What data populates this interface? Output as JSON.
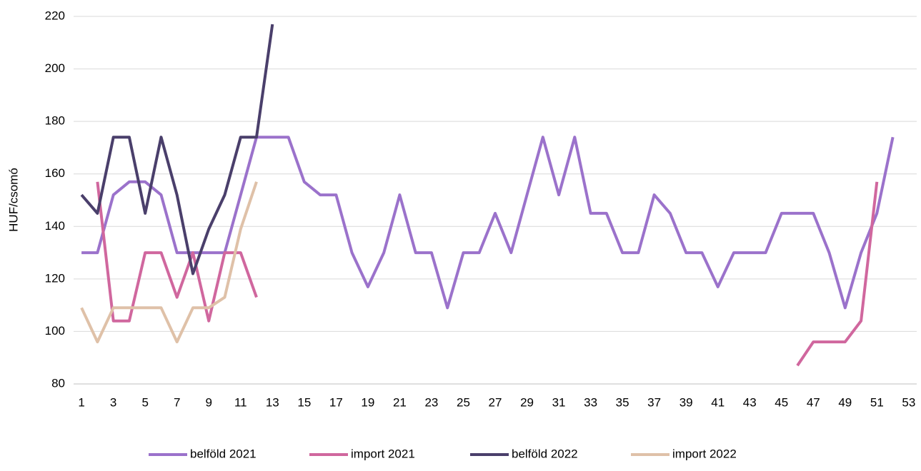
{
  "chart_data": {
    "type": "line",
    "y_label": "HUF/csomó",
    "categories": [
      1,
      null,
      3,
      null,
      5,
      null,
      7,
      null,
      9,
      null,
      11,
      null,
      13,
      null,
      15,
      null,
      17,
      null,
      19,
      null,
      21,
      null,
      23,
      null,
      25,
      null,
      27,
      null,
      29,
      null,
      31,
      null,
      33,
      null,
      35,
      null,
      37,
      null,
      39,
      null,
      41,
      null,
      43,
      null,
      45,
      null,
      47,
      null,
      49,
      null,
      51,
      null,
      53
    ],
    "ylim": [
      80,
      220
    ],
    "yticks": [
      80,
      100,
      120,
      140,
      160,
      180,
      200,
      220
    ],
    "grid": true,
    "legend": "bottom",
    "series": [
      {
        "name": "belföld 2021",
        "color": "#9b72cb",
        "values": [
          130,
          130,
          152,
          157,
          157,
          152,
          130,
          130,
          130,
          130,
          152,
          174,
          174,
          174,
          157,
          152,
          152,
          130,
          117,
          130,
          152,
          130,
          130,
          109,
          130,
          130,
          145,
          130,
          152,
          174,
          152,
          174,
          145,
          145,
          130,
          130,
          152,
          145,
          130,
          130,
          117,
          130,
          130,
          130,
          145,
          145,
          145,
          130,
          109,
          130,
          145,
          174,
          null
        ]
      },
      {
        "name": "import 2021",
        "color": "#d0679e",
        "values": [
          null,
          157,
          104,
          104,
          130,
          130,
          113,
          130,
          104,
          130,
          130,
          113,
          null,
          null,
          null,
          null,
          null,
          null,
          null,
          null,
          null,
          null,
          null,
          null,
          null,
          null,
          null,
          null,
          null,
          null,
          null,
          null,
          null,
          null,
          null,
          null,
          null,
          null,
          null,
          null,
          null,
          null,
          null,
          null,
          null,
          87,
          96,
          96,
          96,
          104,
          157,
          null,
          null
        ]
      },
      {
        "name": "belföld 2022",
        "color": "#4a3f6b",
        "values": [
          152,
          145,
          174,
          174,
          145,
          174,
          152,
          122,
          139,
          152,
          174,
          174,
          217,
          null,
          null,
          null,
          null,
          null,
          null,
          null,
          null,
          null,
          null,
          null,
          null,
          null,
          null,
          null,
          null,
          null,
          null,
          null,
          null,
          null,
          null,
          null,
          null,
          null,
          null,
          null,
          null,
          null,
          null,
          null,
          null,
          null,
          null,
          null,
          null,
          null,
          null,
          null,
          null
        ]
      },
      {
        "name": "import 2022",
        "color": "#dfc1a8",
        "values": [
          109,
          96,
          109,
          109,
          109,
          109,
          96,
          109,
          109,
          113,
          139,
          157,
          null,
          null,
          null,
          null,
          null,
          null,
          null,
          null,
          null,
          null,
          null,
          null,
          null,
          null,
          null,
          null,
          null,
          null,
          null,
          null,
          null,
          null,
          null,
          null,
          null,
          null,
          null,
          null,
          null,
          null,
          null,
          null,
          null,
          null,
          null,
          null,
          null,
          null,
          null,
          null,
          null
        ]
      }
    ]
  }
}
